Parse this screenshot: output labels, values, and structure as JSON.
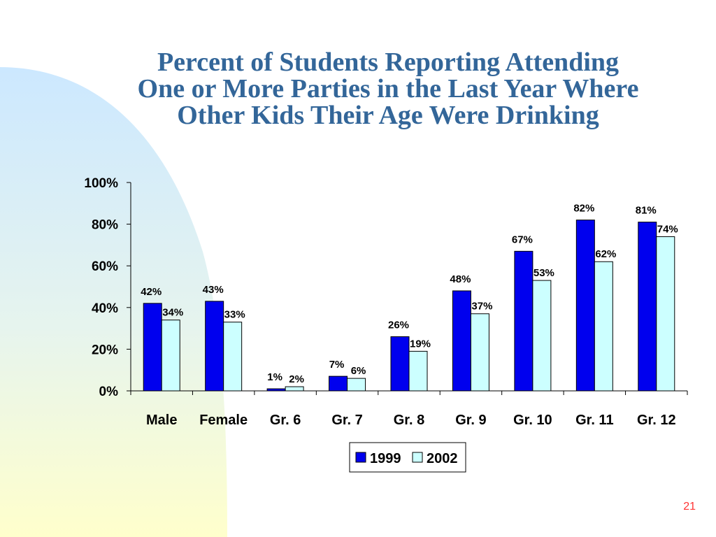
{
  "slide": {
    "title_lines": [
      "Percent of Students Reporting Attending",
      "One or More Parties in the Last Year Where",
      "Other Kids Their Age Were Drinking"
    ],
    "page_number": "21",
    "colors": {
      "title": "#336699",
      "page_number": "#ff3333",
      "background_gradient_top": "#cce8ff",
      "background_gradient_bottom": "#ffffcc"
    }
  },
  "chart_data": {
    "type": "bar",
    "title": "",
    "xlabel": "",
    "ylabel": "",
    "ylim": [
      0,
      100
    ],
    "y_ticks": [
      "0%",
      "20%",
      "40%",
      "60%",
      "80%",
      "100%"
    ],
    "y_tick_values": [
      0,
      20,
      40,
      60,
      80,
      100
    ],
    "categories": [
      "Male",
      "Female",
      "Gr. 6",
      "Gr. 7",
      "Gr. 8",
      "Gr. 9",
      "Gr. 10",
      "Gr. 11",
      "Gr. 12"
    ],
    "series": [
      {
        "name": "1999",
        "color": "#0000ee",
        "values": [
          42,
          43,
          1,
          7,
          26,
          48,
          67,
          82,
          81
        ],
        "labels": [
          "42%",
          "43%",
          "1%",
          "7%",
          "26%",
          "48%",
          "67%",
          "82%",
          "81%"
        ]
      },
      {
        "name": "2002",
        "color": "#ccffff",
        "values": [
          34,
          33,
          2,
          6,
          19,
          37,
          53,
          62,
          74
        ],
        "labels": [
          "34%",
          "33%",
          "2%",
          "6%",
          "19%",
          "37%",
          "53%",
          "62%",
          "74%"
        ]
      }
    ],
    "grid": false,
    "legend_position": "bottom"
  }
}
